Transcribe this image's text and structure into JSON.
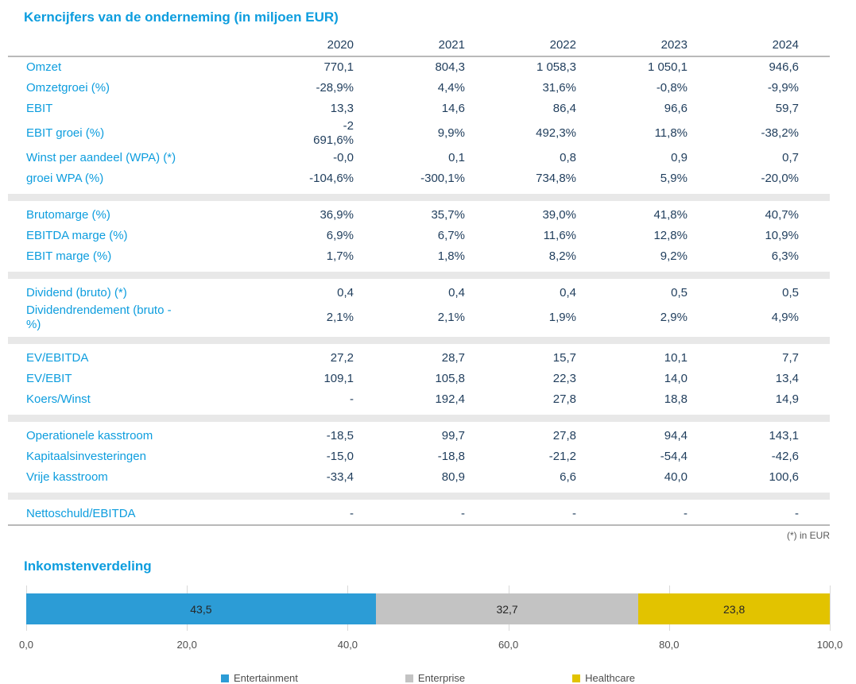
{
  "colors": {
    "accent_blue": "#0D9DDE",
    "value_text": "#1F3D5C",
    "separator_band": "#E8E8E8",
    "rule_gray": "#B9B9B9",
    "bar_blue": "#2C9CD6",
    "bar_gray": "#C3C3C3",
    "bar_yellow": "#E2C300"
  },
  "table": {
    "title": "Kerncijfers van de onderneming (in miljoen EUR)",
    "years": [
      "2020",
      "2021",
      "2022",
      "2023",
      "2024"
    ],
    "groups": [
      {
        "rows": [
          {
            "label": "Omzet",
            "values": [
              "770,1",
              "804,3",
              "1 058,3",
              "1 050,1",
              "946,6"
            ]
          },
          {
            "label": "Omzetgroei (%)",
            "values": [
              "-28,9%",
              "4,4%",
              "31,6%",
              "-0,8%",
              "-9,9%"
            ]
          },
          {
            "label": "EBIT",
            "values": [
              "13,3",
              "14,6",
              "86,4",
              "96,6",
              "59,7"
            ]
          },
          {
            "label": "EBIT groei (%)",
            "values": [
              "-2\n691,6%",
              "9,9%",
              "492,3%",
              "11,8%",
              "-38,2%"
            ]
          },
          {
            "label": "Winst per aandeel (WPA) (*)",
            "values": [
              "-0,0",
              "0,1",
              "0,8",
              "0,9",
              "0,7"
            ]
          },
          {
            "label": "groei WPA (%)",
            "values": [
              "-104,6%",
              "-300,1%",
              "734,8%",
              "5,9%",
              "-20,0%"
            ]
          }
        ]
      },
      {
        "rows": [
          {
            "label": "Brutomarge (%)",
            "values": [
              "36,9%",
              "35,7%",
              "39,0%",
              "41,8%",
              "40,7%"
            ]
          },
          {
            "label": "EBITDA marge (%)",
            "values": [
              "6,9%",
              "6,7%",
              "11,6%",
              "12,8%",
              "10,9%"
            ]
          },
          {
            "label": "EBIT marge (%)",
            "values": [
              "1,7%",
              "1,8%",
              "8,2%",
              "9,2%",
              "6,3%"
            ]
          }
        ]
      },
      {
        "rows": [
          {
            "label": "Dividend (bruto) (*)",
            "values": [
              "0,4",
              "0,4",
              "0,4",
              "0,5",
              "0,5"
            ]
          },
          {
            "label": "Dividendrendement (bruto -\n%)",
            "values": [
              "2,1%",
              "2,1%",
              "1,9%",
              "2,9%",
              "4,9%"
            ]
          }
        ]
      },
      {
        "rows": [
          {
            "label": "EV/EBITDA",
            "values": [
              "27,2",
              "28,7",
              "15,7",
              "10,1",
              "7,7"
            ]
          },
          {
            "label": "EV/EBIT",
            "values": [
              "109,1",
              "105,8",
              "22,3",
              "14,0",
              "13,4"
            ]
          },
          {
            "label": "Koers/Winst",
            "values": [
              "-",
              "192,4",
              "27,8",
              "18,8",
              "14,9"
            ]
          }
        ]
      },
      {
        "rows": [
          {
            "label": "Operationele kasstroom",
            "values": [
              "-18,5",
              "99,7",
              "27,8",
              "94,4",
              "143,1"
            ]
          },
          {
            "label": "Kapitaalsinvesteringen",
            "values": [
              "-15,0",
              "-18,8",
              "-21,2",
              "-54,4",
              "-42,6"
            ]
          },
          {
            "label": "Vrije kasstroom",
            "values": [
              "-33,4",
              "80,9",
              "6,6",
              "40,0",
              "100,6"
            ]
          }
        ]
      },
      {
        "rows": [
          {
            "label": "Nettoschuld/EBITDA",
            "values": [
              "-",
              "-",
              "-",
              "-",
              "-"
            ]
          }
        ]
      }
    ],
    "footnote": "(*) in EUR"
  },
  "chart": {
    "title": "Inkomstenverdeling"
  },
  "chart_data": {
    "type": "bar",
    "subtype": "horizontal-stacked",
    "title": "Inkomstenverdeling",
    "series": [
      {
        "name": "Entertainment",
        "value": 43.5,
        "label": "43,5",
        "color": "#2C9CD6"
      },
      {
        "name": "Enterprise",
        "value": 32.7,
        "label": "32,7",
        "color": "#C3C3C3"
      },
      {
        "name": "Healthcare",
        "value": 23.8,
        "label": "23,8",
        "color": "#E2C300"
      }
    ],
    "x_ticks": [
      "0,0",
      "20,0",
      "40,0",
      "60,0",
      "80,0",
      "100,0"
    ],
    "xlim": [
      0,
      100
    ],
    "grid": "ticks-only",
    "legend_position": "bottom"
  }
}
